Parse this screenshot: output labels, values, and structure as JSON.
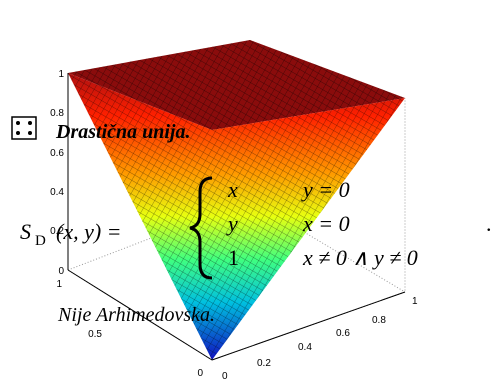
{
  "slide": {
    "title": "Drastična unija.",
    "formula": {
      "lhs": "S",
      "subscript": "D",
      "args": "(x, y) =",
      "cases": [
        {
          "value": "x",
          "condition": "y = 0"
        },
        {
          "value": "y",
          "condition": "x = 0"
        },
        {
          "value": "1",
          "condition": "x ≠ 0 ∧ y ≠ 0"
        }
      ],
      "end": "."
    },
    "note": "Nije Arhimedovska."
  },
  "plot": {
    "zticks": [
      "1",
      "0.8",
      "0.6",
      "0.4",
      "0.2",
      "0"
    ],
    "left_ticks": [
      "1",
      "0.5",
      "0"
    ],
    "right_ticks": [
      "0",
      "0.2",
      "0.4",
      "0.6",
      "0.8",
      "1"
    ]
  }
}
